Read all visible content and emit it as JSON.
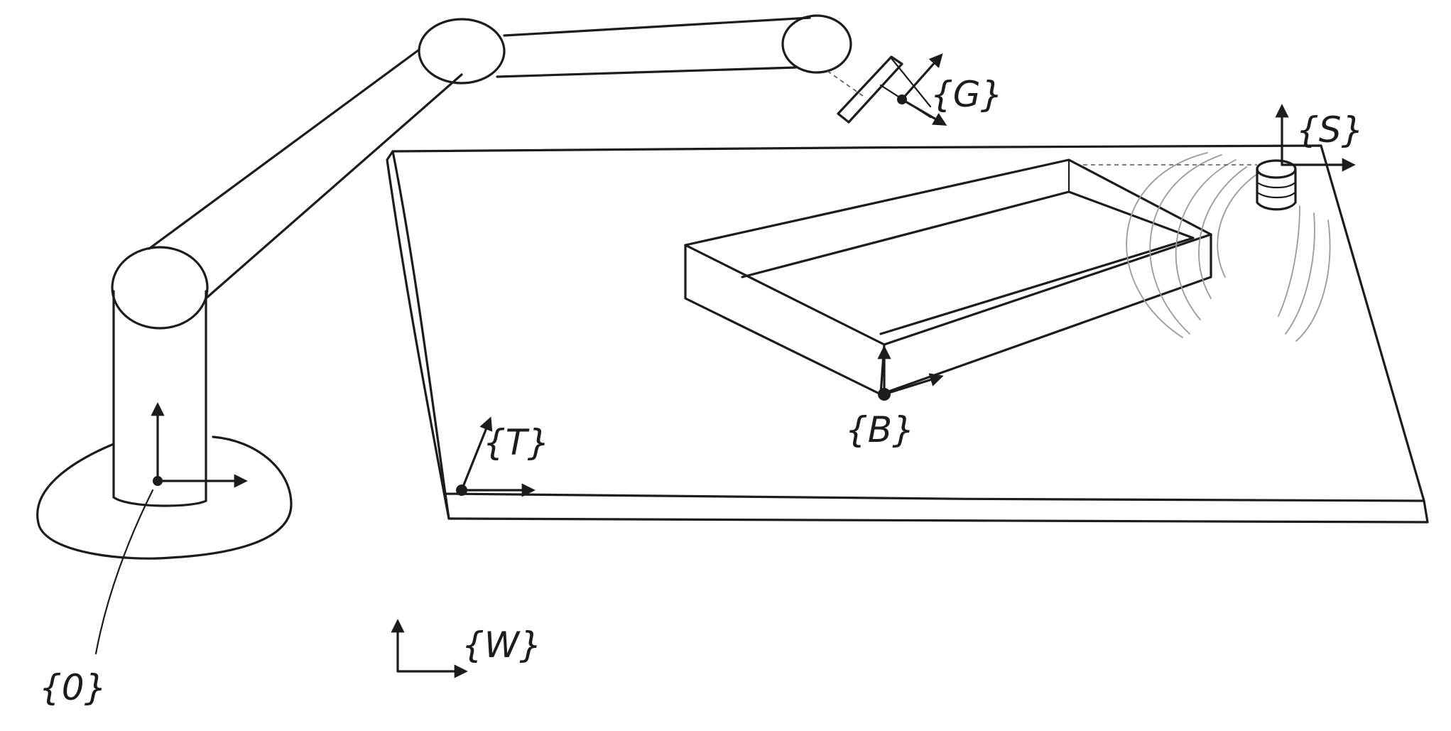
{
  "diagram": {
    "frames": {
      "robot_base": "{0}",
      "gripper": "{G}",
      "sensor": "{S}",
      "box": "{B}",
      "table": "{T}",
      "world": "{W}"
    },
    "colors": {
      "ink": "#1c1c1c",
      "sensor_waves": "#9a9a9a",
      "background": "#ffffff"
    }
  }
}
